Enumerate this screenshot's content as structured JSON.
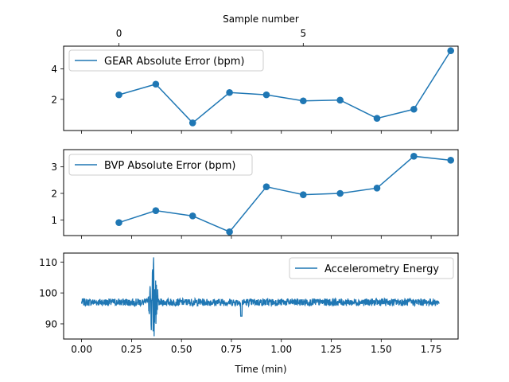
{
  "chart_data": [
    {
      "type": "line",
      "top_xlabel": "Sample number",
      "top_xticks": [
        0,
        5
      ],
      "series": [
        {
          "name": "GEAR Absolute Error (bpm)",
          "x": [
            0,
            1,
            2,
            3,
            4,
            5,
            6,
            7,
            8,
            9
          ],
          "y": [
            2.3,
            3.0,
            0.45,
            2.45,
            2.3,
            1.9,
            1.95,
            0.75,
            1.35,
            5.2
          ]
        }
      ],
      "xlim": [
        -1.5,
        9.2
      ],
      "ylim": [
        -0.05,
        5.5
      ],
      "yticks": [
        2,
        4
      ],
      "legend": "upper-left",
      "color": "#1f77b4"
    },
    {
      "type": "line",
      "series": [
        {
          "name": "BVP Absolute Error (bpm)",
          "x": [
            0,
            1,
            2,
            3,
            4,
            5,
            6,
            7,
            8,
            9
          ],
          "y": [
            0.9,
            1.35,
            1.15,
            0.55,
            2.25,
            1.95,
            2.0,
            2.2,
            3.4,
            3.25
          ]
        }
      ],
      "xlim": [
        -1.5,
        9.2
      ],
      "ylim": [
        0.41,
        3.65
      ],
      "yticks": [
        1,
        2,
        3
      ],
      "legend": "upper-left",
      "color": "#1f77b4"
    },
    {
      "type": "line",
      "xlabel": "Time (min)",
      "series": [
        {
          "name": "Accelerometry Energy",
          "x_range": [
            0,
            1.79
          ],
          "baseline": 97,
          "noise_amplitude": 1.2,
          "spike_at": 0.36,
          "spike_max": 111.5,
          "spike_min": 86
        }
      ],
      "xlim": [
        -0.09,
        1.885
      ],
      "ylim": [
        85.1,
        112.9
      ],
      "yticks": [
        90,
        100,
        110
      ],
      "xticks": [
        "0.00",
        "0.25",
        "0.50",
        "0.75",
        "1.00",
        "1.25",
        "1.50",
        "1.75"
      ],
      "legend": "upper-right",
      "color": "#1f77b4"
    }
  ]
}
